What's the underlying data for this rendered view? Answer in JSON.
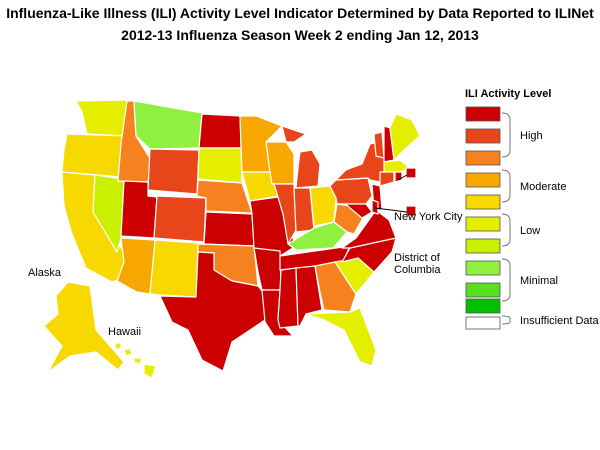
{
  "header": {
    "title": "Influenza-Like Illness (ILI) Activity Level Indicator Determined by Data Reported to ILINet",
    "subtitle": "2012-13  Influenza Season Week  2 ending Jan 12, 2013"
  },
  "map_labels": {
    "new_york_city": "New York City",
    "dc_line1": "District of",
    "dc_line2": "Columbia",
    "alaska": "Alaska",
    "hawaii": "Hawaii"
  },
  "legend": {
    "title": "ILI Activity Level",
    "levels": [
      {
        "level": 10,
        "color": "#cc0000"
      },
      {
        "level": 9,
        "color": "#e8461a"
      },
      {
        "level": 8,
        "color": "#f5821f"
      },
      {
        "level": 7,
        "color": "#f8a600"
      },
      {
        "level": 6,
        "color": "#f7d800"
      },
      {
        "level": 5,
        "color": "#e6ee00"
      },
      {
        "level": 4,
        "color": "#c8f000"
      },
      {
        "level": 3,
        "color": "#90f040"
      },
      {
        "level": 2,
        "color": "#58e020"
      },
      {
        "level": 1,
        "color": "#00c000"
      },
      {
        "level": 0,
        "color": "#ffffff"
      }
    ],
    "groups": {
      "high": "High",
      "moderate": "Moderate",
      "low": "Low",
      "minimal": "Minimal",
      "insufficient": "Insufficient Data"
    }
  },
  "state_levels": {
    "WA": 5,
    "OR": 6,
    "CA": 6,
    "NV": 4,
    "ID": 8,
    "MT": 3,
    "WY": 9,
    "UT": 10,
    "CO": 9,
    "AZ": 7,
    "NM": 6,
    "ND": 10,
    "SD": 5,
    "NE": 8,
    "KS": 10,
    "OK": 8,
    "TX": 10,
    "MN": 7,
    "IA": 6,
    "MO": 10,
    "AR": 10,
    "LA": 10,
    "WI": 7,
    "IL": 9,
    "MI": 9,
    "IN": 9,
    "OH": 6,
    "KY": 3,
    "TN": 10,
    "MS": 10,
    "AL": 10,
    "GA": 8,
    "FL": 5,
    "SC": 5,
    "NC": 10,
    "VA": 10,
    "WV": 8,
    "PA": 9,
    "NY": 9,
    "VT": 9,
    "NH": 10,
    "ME": 5,
    "MA": 5,
    "CT": 9,
    "RI": 10,
    "NJ": 10,
    "DE": 10,
    "MD": 10,
    "AK": 6,
    "HI": 5,
    "NYC": 10,
    "DC": 10
  }
}
